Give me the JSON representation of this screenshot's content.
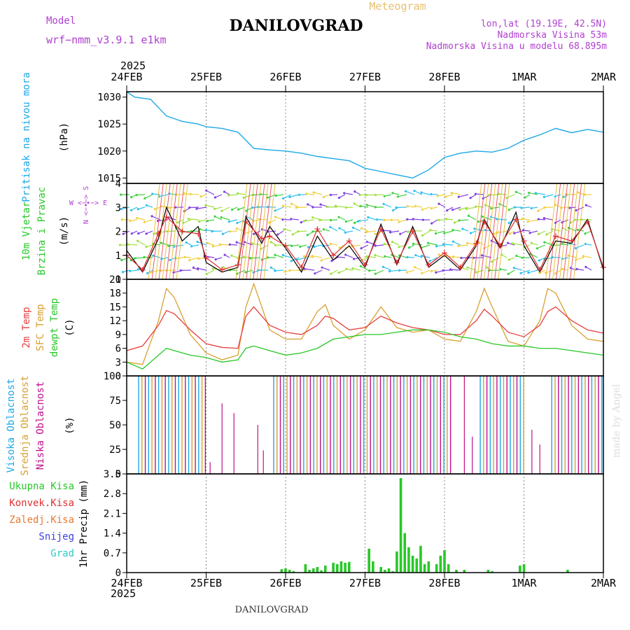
{
  "header": {
    "model_label": "Model",
    "model_name": "wrf−nmm_v3.9.1  e1km",
    "station_title": "DANILOVGRAD",
    "product_label": "Meteogram",
    "lonlat": "lon,lat (19.19E, 42.5N)",
    "elevation": "Nadmorska Visina 53m",
    "model_elevation": "Nadmorska Visina u modelu 68.895m",
    "footer_title": "DANILOVGRAD",
    "credit": "made by Angel",
    "year_top": "2025",
    "year_bottom": "2025"
  },
  "colors": {
    "pressure": "#1ea8e8",
    "wind_speed": "#000000",
    "gust": "#e03030",
    "t2m": "#e83e3e",
    "sfc_temp": "#d8a030",
    "dewpoint": "#28c828",
    "cloud_high": "#1ea8e8",
    "cloud_mid": "#d8a030",
    "cloud_low": "#c0108c",
    "precip_total": "#28c828",
    "precip_conv": "#e03030",
    "precip_frozen": "#e87830",
    "snow": "#4040e0",
    "graupel": "#30c8c8",
    "label_purple": "#b040d0",
    "title_gold": "#e8c070"
  },
  "chart_data": {
    "type": "line",
    "x_ticks": [
      "24FEB",
      "25FEB",
      "26FEB",
      "27FEB",
      "28FEB",
      "1MAR",
      "2MAR"
    ],
    "panels": [
      {
        "id": "pressure",
        "ylabel_lines": [
          "Pritisak na nivou mora"
        ],
        "unit": "(hPa)",
        "ylim": [
          1014,
          1031
        ],
        "yticks": [
          1015,
          1020,
          1025,
          1030
        ],
        "x": [
          0,
          0.1,
          0.3,
          0.5,
          0.7,
          0.9,
          1.0,
          1.2,
          1.4,
          1.5,
          1.6,
          1.8,
          2.0,
          2.2,
          2.4,
          2.6,
          2.8,
          3.0,
          3.2,
          3.4,
          3.6,
          3.8,
          4.0,
          4.2,
          4.4,
          4.6,
          4.8,
          5.0,
          5.2,
          5.4,
          5.6,
          5.8,
          6.0
        ],
        "values": [
          1031,
          1030,
          1029.6,
          1026.5,
          1025.5,
          1025,
          1024.5,
          1024.2,
          1023.5,
          1022,
          1020.5,
          1020.2,
          1020,
          1019.6,
          1019,
          1018.6,
          1018.2,
          1016.8,
          1016.2,
          1015.6,
          1015,
          1016.5,
          1018.8,
          1019.6,
          1020,
          1019.8,
          1020.5,
          1022.0,
          1023.0,
          1024.2,
          1023.4,
          1024.0,
          1023.5
        ]
      },
      {
        "id": "wind",
        "ylabel_lines": [
          "10m Vjetar",
          "Brzina i Pravac"
        ],
        "unit": "(m/s)",
        "compass": "W <−∙−> E",
        "compass_v": "N <−∙−> S",
        "ylim": [
          0,
          4
        ],
        "yticks": [
          0,
          1,
          2,
          3,
          4
        ],
        "x": [
          0,
          0.2,
          0.4,
          0.5,
          0.7,
          0.9,
          1.0,
          1.2,
          1.4,
          1.5,
          1.7,
          1.8,
          2.0,
          2.2,
          2.4,
          2.6,
          2.8,
          3.0,
          3.2,
          3.4,
          3.6,
          3.8,
          4.0,
          4.2,
          4.4,
          4.5,
          4.7,
          4.9,
          5.0,
          5.2,
          5.4,
          5.6,
          5.8,
          6.0
        ],
        "speed": [
          1.2,
          0.3,
          1.7,
          3.0,
          1.6,
          2.2,
          0.7,
          0.3,
          0.5,
          2.6,
          1.5,
          2.2,
          1.3,
          0.3,
          1.8,
          0.8,
          1.4,
          0.5,
          2.3,
          0.6,
          2.2,
          0.5,
          1.0,
          0.4,
          1.4,
          2.5,
          1.3,
          2.8,
          1.4,
          0.3,
          1.6,
          1.5,
          2.5,
          0.4
        ],
        "gust": [
          1.0,
          0.4,
          1.9,
          2.6,
          2.0,
          1.9,
          0.9,
          0.4,
          0.6,
          2.4,
          1.7,
          1.8,
          1.4,
          0.5,
          2.1,
          1.0,
          1.6,
          0.6,
          2.1,
          0.7,
          2.0,
          0.6,
          1.1,
          0.5,
          1.5,
          2.4,
          1.4,
          2.5,
          1.6,
          0.4,
          1.8,
          1.6,
          2.4,
          0.5
        ]
      },
      {
        "id": "temperature",
        "ylabel_lines": [
          "2m Temp",
          "SFC Temp",
          "dewpt Temp"
        ],
        "unit": "(C)",
        "ylim": [
          0,
          21
        ],
        "yticks": [
          0,
          3,
          6,
          9,
          12,
          15,
          18,
          21
        ],
        "x": [
          0,
          0.2,
          0.4,
          0.5,
          0.6,
          0.8,
          1.0,
          1.2,
          1.4,
          1.5,
          1.6,
          1.8,
          2.0,
          2.2,
          2.4,
          2.5,
          2.6,
          2.8,
          3.0,
          3.2,
          3.4,
          3.6,
          3.8,
          4.0,
          4.2,
          4.4,
          4.5,
          4.6,
          4.8,
          5.0,
          5.2,
          5.3,
          5.4,
          5.6,
          5.8,
          6.0
        ],
        "t2m": [
          5.5,
          6.5,
          11,
          14.2,
          13.5,
          10,
          7,
          6.2,
          6.0,
          13,
          15,
          11,
          9.5,
          9.0,
          11,
          13,
          12.5,
          10,
          10.5,
          13,
          11.5,
          10.5,
          10,
          9,
          9.0,
          12,
          14.5,
          13,
          9.5,
          8.5,
          11,
          14,
          15,
          12,
          10,
          9.3
        ],
        "sfc": [
          3,
          2.5,
          12,
          19,
          17,
          9,
          5,
          3.5,
          4.5,
          15,
          20,
          10,
          8,
          8,
          14,
          15.5,
          11,
          8,
          10,
          15,
          10.5,
          9.5,
          10,
          8,
          7.5,
          14,
          19,
          15,
          7.5,
          6.5,
          12,
          19,
          18,
          11,
          8,
          7.5
        ],
        "dew": [
          3,
          1.5,
          4.5,
          6,
          5.5,
          4.5,
          4,
          3,
          3.5,
          6,
          6.5,
          5.5,
          4.5,
          5,
          6,
          7,
          8,
          8.5,
          9,
          9,
          9.5,
          10,
          10,
          9.5,
          8.5,
          8,
          7.5,
          7,
          6.5,
          6.5,
          6,
          6,
          6,
          5.5,
          5,
          4.5
        ]
      },
      {
        "id": "clouds",
        "ylabel_lines": [
          "Visoka Oblacnost",
          "Srednja Oblacnost",
          "Niska Oblacnost"
        ],
        "unit": "(%)",
        "ylim": [
          0,
          100
        ],
        "yticks": [
          0,
          25,
          50,
          75,
          100
        ],
        "cloudy_intervals": [
          [
            0.15,
            1.0
          ],
          [
            1.85,
            4.08
          ],
          [
            4.45,
            5.02
          ],
          [
            5.35,
            6.0
          ]
        ],
        "sparse_low": [
          [
            1.05,
            12
          ],
          [
            1.2,
            72
          ],
          [
            1.35,
            62
          ],
          [
            1.65,
            50
          ],
          [
            1.72,
            24
          ],
          [
            4.25,
            100
          ],
          [
            4.35,
            38
          ],
          [
            5.1,
            45
          ],
          [
            5.2,
            30
          ]
        ]
      },
      {
        "id": "precip",
        "ylabel_lines": [
          "Ukupna Kisa",
          "Konvek.Kisa",
          "Zaledj.Kisa",
          "Snijeg",
          "Grad"
        ],
        "ylabel_colors": [
          "#28c828",
          "#e03030",
          "#e87830",
          "#4040e0",
          "#30c8c8"
        ],
        "unit": "1hr Precip (mm)",
        "ylim": [
          0,
          3.5
        ],
        "yticks": [
          0,
          0.7,
          1.4,
          2.1,
          2.8,
          3.5
        ],
        "bars": [
          [
            1.95,
            0.12
          ],
          [
            2.0,
            0.15
          ],
          [
            2.05,
            0.1
          ],
          [
            2.1,
            0.05
          ],
          [
            2.25,
            0.3
          ],
          [
            2.3,
            0.1
          ],
          [
            2.35,
            0.15
          ],
          [
            2.4,
            0.2
          ],
          [
            2.45,
            0.08
          ],
          [
            2.5,
            0.25
          ],
          [
            2.6,
            0.35
          ],
          [
            2.65,
            0.3
          ],
          [
            2.7,
            0.4
          ],
          [
            2.75,
            0.35
          ],
          [
            2.8,
            0.38
          ],
          [
            3.05,
            0.85
          ],
          [
            3.1,
            0.4
          ],
          [
            3.2,
            0.2
          ],
          [
            3.25,
            0.1
          ],
          [
            3.3,
            0.15
          ],
          [
            3.35,
            0.05
          ],
          [
            3.4,
            0.75
          ],
          [
            3.45,
            3.35
          ],
          [
            3.5,
            1.4
          ],
          [
            3.55,
            0.9
          ],
          [
            3.6,
            0.6
          ],
          [
            3.65,
            0.5
          ],
          [
            3.7,
            0.95
          ],
          [
            3.75,
            0.3
          ],
          [
            3.8,
            0.4
          ],
          [
            3.9,
            0.3
          ],
          [
            3.95,
            0.6
          ],
          [
            4.0,
            0.8
          ],
          [
            4.05,
            0.3
          ],
          [
            4.15,
            0.1
          ],
          [
            4.25,
            0.1
          ],
          [
            4.55,
            0.1
          ],
          [
            4.6,
            0.05
          ],
          [
            4.95,
            0.25
          ],
          [
            5.0,
            0.3
          ],
          [
            5.55,
            0.1
          ]
        ]
      }
    ]
  }
}
